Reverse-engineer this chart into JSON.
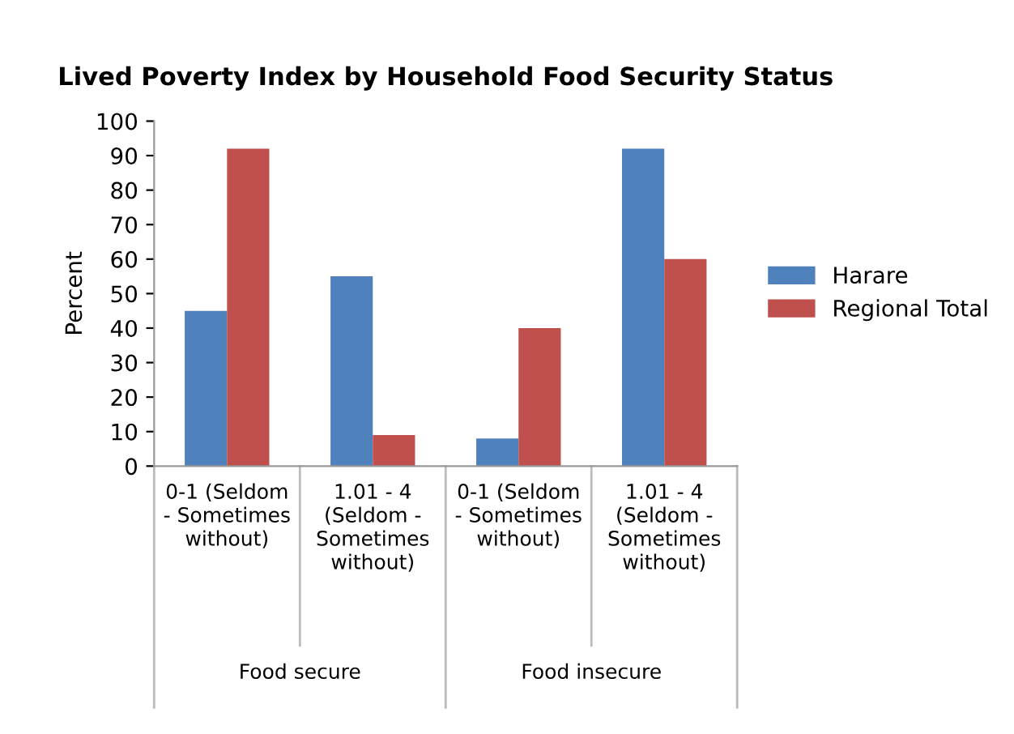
{
  "chart_data": {
    "type": "bar",
    "title": "Lived Poverty Index by Household Food Security Status",
    "ylabel": "Percent",
    "categories": [
      "0-1 (Seldom\n- Sometimes\nwithout)",
      "1.01 - 4\n(Seldom -\nSometimes\nwithout)",
      "0-1 (Seldom\n- Sometimes\nwithout)",
      "1.01 - 4\n(Seldom -\nSometimes\nwithout)"
    ],
    "series": [
      {
        "name": "Harare",
        "color": "#4f81bd",
        "values": [
          45,
          55,
          8,
          92
        ]
      },
      {
        "name": "Regional Total",
        "color": "#c0504d",
        "values": [
          92,
          9,
          40,
          60
        ]
      }
    ],
    "ylim": [
      0,
      100
    ],
    "yticks": [
      0,
      10,
      20,
      30,
      40,
      50,
      60,
      70,
      80,
      90,
      100
    ],
    "annotations": [
      "Food secure",
      "Food insecure"
    ],
    "grid": false,
    "legend": "right"
  }
}
